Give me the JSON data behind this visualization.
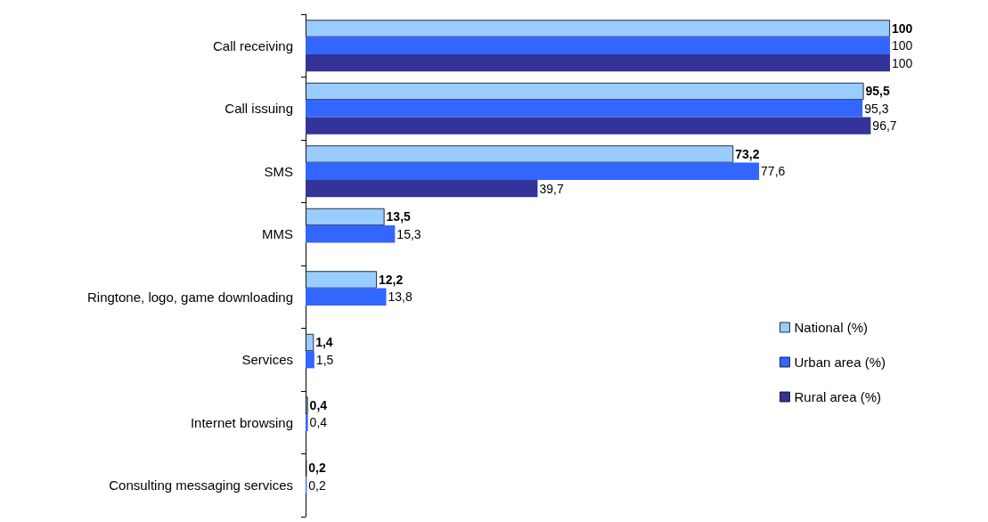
{
  "chart_data": {
    "type": "bar",
    "orientation": "horizontal",
    "categories": [
      "Call receiving",
      "Call issuing",
      "SMS",
      "MMS",
      "Ringtone, logo, game downloading",
      "Services",
      "Internet browsing",
      "Consulting messaging services"
    ],
    "series": [
      {
        "name": "National (%)",
        "color": "#99ccff",
        "values": [
          100,
          95.5,
          73.2,
          13.5,
          12.2,
          1.4,
          0.4,
          0.2
        ],
        "value_labels": [
          "100",
          "95,5",
          "73,2",
          "13,5",
          "12,2",
          "1,4",
          "0,4",
          "0,2"
        ]
      },
      {
        "name": "Urban area (%)",
        "color": "#3366ff",
        "values": [
          100,
          95.3,
          77.6,
          15.3,
          13.8,
          1.5,
          0.4,
          0.2
        ],
        "value_labels": [
          "100",
          "95,3",
          "77,6",
          "15,3",
          "13,8",
          "1,5",
          "0,4",
          "0,2"
        ]
      },
      {
        "name": "Rural area (%)",
        "color": "#333399",
        "values": [
          100,
          96.7,
          39.7,
          null,
          null,
          null,
          null,
          null
        ],
        "value_labels": [
          "100",
          "96,7",
          "39,7",
          null,
          null,
          null,
          null,
          null
        ]
      }
    ],
    "xlim": [
      0,
      100
    ],
    "tick_labels": "y",
    "grid": false,
    "legend": "right"
  }
}
